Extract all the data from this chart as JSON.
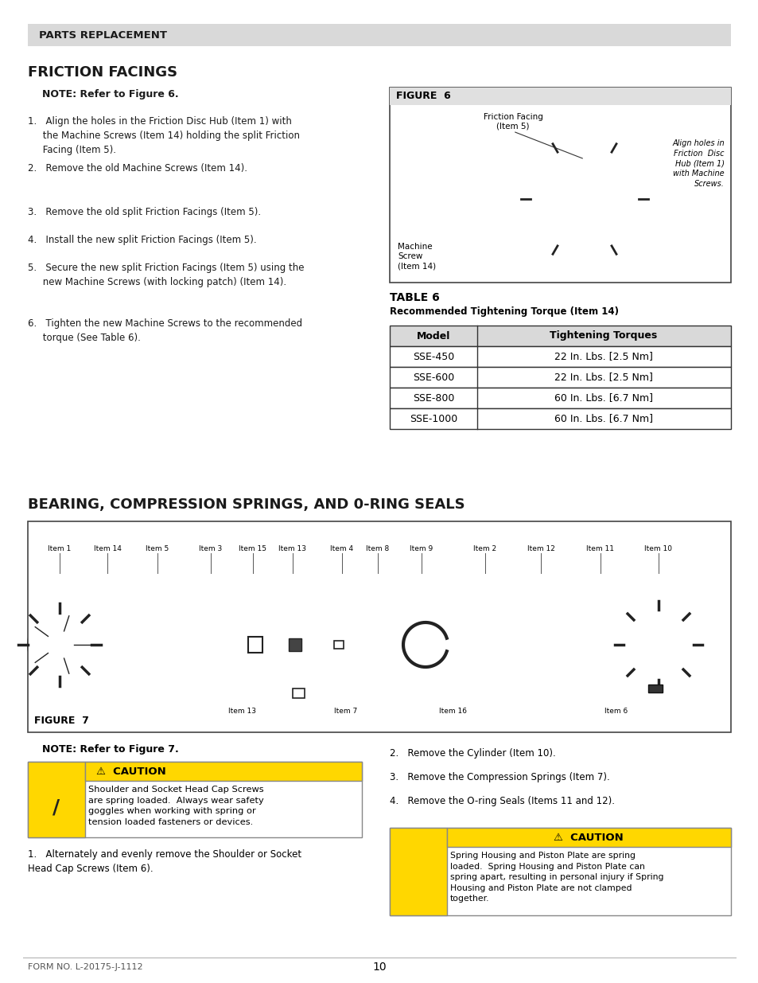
{
  "page_bg": "#ffffff",
  "header_bg": "#d9d9d9",
  "header_text": "PARTS REPLACEMENT",
  "header_text_color": "#1a1a1a",
  "section1_title": "FRICTION FACINGS",
  "section1_note": "NOTE: Refer to Figure 6.",
  "section1_steps": [
    "1.   Align the holes in the Friction Disc Hub (Item 1) with\n     the Machine Screws (Item 14) holding the split Friction\n     Facing (Item 5).",
    "2.   Remove the old Machine Screws (Item 14).",
    "3.   Remove the old split Friction Facings (Item 5).",
    "4.   Install the new split Friction Facings (Item 5).",
    "5.   Secure the new split Friction Facings (Item 5) using the\n     new Machine Screws (with locking patch) (Item 14).",
    "6.   Tighten the new Machine Screws to the recommended\n     torque (See Table 6)."
  ],
  "figure6_title": "FIGURE  6",
  "figure6_label1": "Friction Facing\n(Item 5)",
  "figure6_label2": "Align holes in\nFriction  Disc\nHub (Item 1)\nwith Machine\nScrews.",
  "figure6_label3": "Machine\nScrew\n(Item 14)",
  "table6_title": "TABLE 6",
  "table6_subtitle": "Recommended Tightening Torque (Item 14)",
  "table6_header": [
    "Model",
    "Tightening Torques"
  ],
  "table6_rows": [
    [
      "SSE-450",
      "22 In. Lbs. [2.5 Nm]"
    ],
    [
      "SSE-600",
      "22 In. Lbs. [2.5 Nm]"
    ],
    [
      "SSE-800",
      "60 In. Lbs. [6.7 Nm]"
    ],
    [
      "SSE-1000",
      "60 In. Lbs. [6.7 Nm]"
    ]
  ],
  "table_header_bg": "#d9d9d9",
  "section2_title": "BEARING, COMPRESSION SPRINGS, AND 0-RING SEALS",
  "figure7_title": "FIGURE  7",
  "figure7_items_top": [
    "Item 1",
    "Item 14",
    "Item 5",
    "Item 3",
    "Item 15",
    "Item 13",
    "Item 4",
    "Item 8",
    "Item 9",
    "Item 2",
    "Item 12",
    "Item 11",
    "Item 10"
  ],
  "figure7_items_bottom": [
    "Item 13",
    "Item 7",
    "Item 16",
    "Item 6"
  ],
  "section2_note": "NOTE: Refer to Figure 7.",
  "caution1_title": "CAUTION",
  "caution1_text": "Shoulder and Socket Head Cap Screws\nare spring loaded.  Always wear safety\ngoggles when working with spring or\ntension loaded fasteners or devices.",
  "steps_right": [
    "2.   Remove the Cylinder (Item 10).",
    "3.   Remove the Compression Springs (Item 7).",
    "4.   Remove the O-ring Seals (Items 11 and 12)."
  ],
  "step_left_bottom": "1.   Alternately and evenly remove the Shoulder or Socket\nHead Cap Screws (Item 6).",
  "caution2_title": "CAUTION",
  "caution2_text": "Spring Housing and Piston Plate are spring\nloaded.  Spring Housing and Piston Plate can\nspring apart, resulting in personal injury if Spring\nHousing and Piston Plate are not clamped\ntogether.",
  "caution_bg": "#ffd700",
  "footer_left": "FORM NO. L-20175-J-1112",
  "footer_center": "10"
}
